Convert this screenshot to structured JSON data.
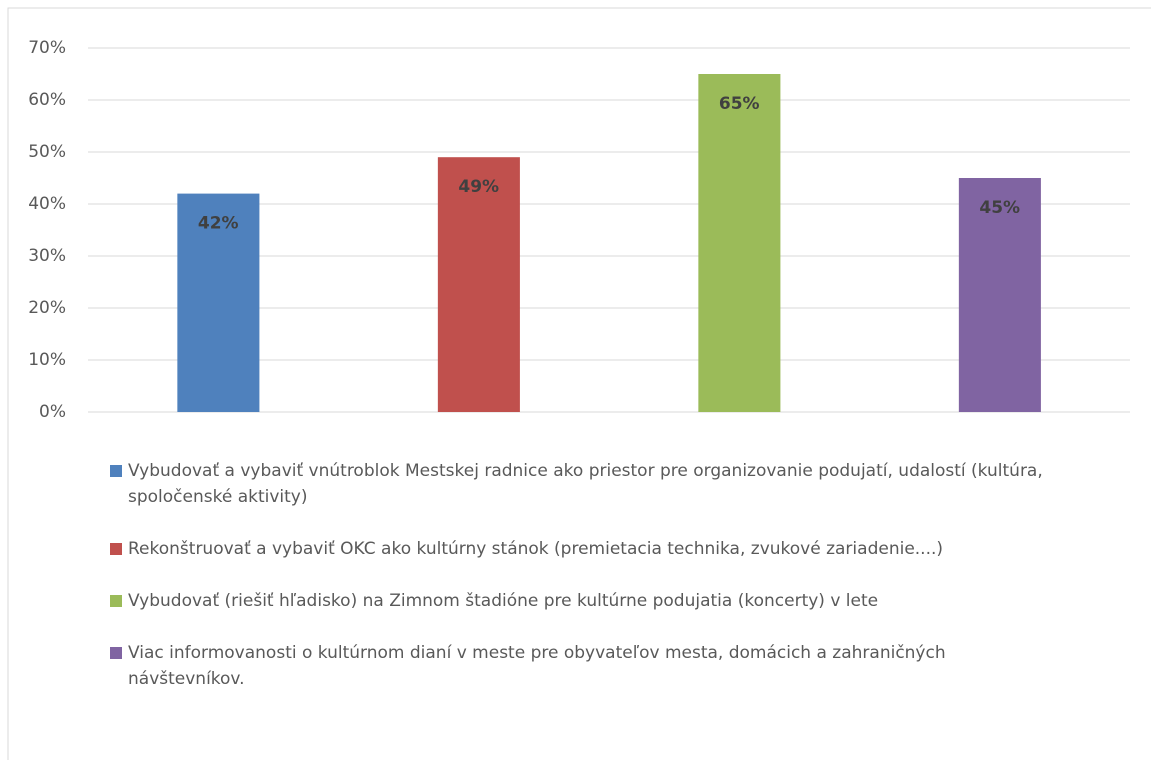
{
  "chart_data": {
    "type": "bar",
    "categories": [
      "Vybudovať a vybaviť vnútroblok Mestskej radnice ako priestor pre organizovanie podujatí, udalostí (kultúra, spoločenské aktivity)",
      "Rekonštruovať a vybaviť OKC ako kultúrny stánok (premietacia technika, zvukové zariadenie....)",
      "Vybudovať (riešiť hľadisko) na Zimnom štadióne pre kultúrne podujatia (koncerty) v lete",
      "Viac informovanosti o kultúrnom dianí v meste pre obyvateľov mesta, domácich a zahraničných návštevníkov."
    ],
    "values": [
      42,
      49,
      65,
      45
    ],
    "value_labels": [
      "42%",
      "49%",
      "65%",
      "45%"
    ],
    "colors": [
      "#4f81bd",
      "#c0504d",
      "#9bbb59",
      "#8064a2"
    ],
    "ylim": [
      0,
      70
    ],
    "yticks": [
      {
        "value": 0,
        "label": "0%"
      },
      {
        "value": 10,
        "label": "10%"
      },
      {
        "value": 20,
        "label": "20%"
      },
      {
        "value": 30,
        "label": "30%"
      },
      {
        "value": 40,
        "label": "40%"
      },
      {
        "value": 50,
        "label": "50%"
      },
      {
        "value": 60,
        "label": "60%"
      },
      {
        "value": 70,
        "label": "70%"
      }
    ],
    "grid": true,
    "legend": "bottom"
  }
}
